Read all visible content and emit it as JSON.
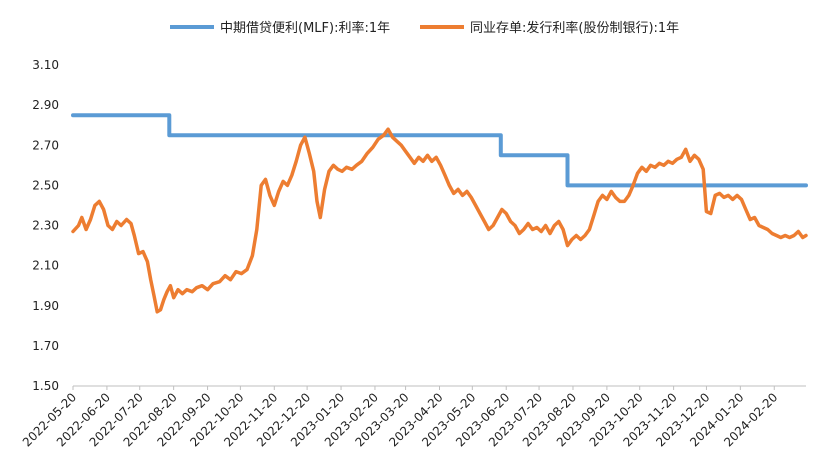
{
  "chart_data": {
    "type": "line",
    "title": "",
    "xlabel": "",
    "ylabel": "",
    "ylim": [
      1.5,
      3.1
    ],
    "yticks": [
      3.1,
      2.9,
      2.7,
      2.5,
      2.3,
      2.1,
      1.9,
      1.7,
      1.5
    ],
    "ytick_labels": [
      "3.10",
      "2.90",
      "2.70",
      "2.50",
      "2.30",
      "2.10",
      "1.90",
      "1.70",
      "1.50"
    ],
    "x_start": "2022-05-20",
    "x_end": "2024-03-20",
    "xtick_labels": [
      "2022-05-20",
      "2022-06-20",
      "2022-07-20",
      "2022-08-20",
      "2022-09-20",
      "2022-10-20",
      "2022-11-20",
      "2022-12-20",
      "2023-01-20",
      "2023-02-20",
      "2023-03-20",
      "2023-04-20",
      "2023-05-20",
      "2023-06-20",
      "2023-07-20",
      "2023-08-20",
      "2023-09-20",
      "2023-10-20",
      "2023-11-20",
      "2023-12-20",
      "2024-01-20",
      "2024-02-20"
    ],
    "grid": false,
    "legend_position": "top",
    "series": [
      {
        "name": "中期借贷便利(MLF):利率:1年",
        "color": "#5B9BD5",
        "step": true,
        "points": [
          [
            "2022-05-20",
            2.85
          ],
          [
            "2022-08-16",
            2.75
          ],
          [
            "2023-06-15",
            2.65
          ],
          [
            "2023-08-15",
            2.5
          ],
          [
            "2024-03-20",
            2.5
          ]
        ]
      },
      {
        "name": "同业存单:发行利率(股份制银行):1年",
        "color": "#ED7D31",
        "step": false,
        "points": [
          [
            "2022-05-20",
            2.27
          ],
          [
            "2022-05-25",
            2.3
          ],
          [
            "2022-05-28",
            2.34
          ],
          [
            "2022-06-01",
            2.28
          ],
          [
            "2022-06-05",
            2.33
          ],
          [
            "2022-06-09",
            2.4
          ],
          [
            "2022-06-13",
            2.42
          ],
          [
            "2022-06-17",
            2.38
          ],
          [
            "2022-06-21",
            2.3
          ],
          [
            "2022-06-25",
            2.28
          ],
          [
            "2022-06-29",
            2.32
          ],
          [
            "2022-07-03",
            2.3
          ],
          [
            "2022-07-08",
            2.33
          ],
          [
            "2022-07-12",
            2.31
          ],
          [
            "2022-07-15",
            2.25
          ],
          [
            "2022-07-19",
            2.16
          ],
          [
            "2022-07-23",
            2.17
          ],
          [
            "2022-07-27",
            2.12
          ],
          [
            "2022-07-30",
            2.03
          ],
          [
            "2022-08-02",
            1.95
          ],
          [
            "2022-08-05",
            1.87
          ],
          [
            "2022-08-08",
            1.88
          ],
          [
            "2022-08-11",
            1.93
          ],
          [
            "2022-08-14",
            1.97
          ],
          [
            "2022-08-17",
            2.0
          ],
          [
            "2022-08-20",
            1.94
          ],
          [
            "2022-08-24",
            1.98
          ],
          [
            "2022-08-28",
            1.96
          ],
          [
            "2022-09-01",
            1.98
          ],
          [
            "2022-09-06",
            1.97
          ],
          [
            "2022-09-10",
            1.99
          ],
          [
            "2022-09-15",
            2.0
          ],
          [
            "2022-09-20",
            1.98
          ],
          [
            "2022-09-25",
            2.01
          ],
          [
            "2022-10-01",
            2.02
          ],
          [
            "2022-10-06",
            2.05
          ],
          [
            "2022-10-11",
            2.03
          ],
          [
            "2022-10-16",
            2.07
          ],
          [
            "2022-10-21",
            2.06
          ],
          [
            "2022-10-26",
            2.08
          ],
          [
            "2022-10-31",
            2.15
          ],
          [
            "2022-11-04",
            2.28
          ],
          [
            "2022-11-08",
            2.5
          ],
          [
            "2022-11-12",
            2.53
          ],
          [
            "2022-11-16",
            2.45
          ],
          [
            "2022-11-20",
            2.4
          ],
          [
            "2022-11-24",
            2.47
          ],
          [
            "2022-11-28",
            2.52
          ],
          [
            "2022-12-02",
            2.5
          ],
          [
            "2022-12-06",
            2.55
          ],
          [
            "2022-12-10",
            2.62
          ],
          [
            "2022-12-14",
            2.7
          ],
          [
            "2022-12-18",
            2.74
          ],
          [
            "2022-12-22",
            2.66
          ],
          [
            "2022-12-26",
            2.57
          ],
          [
            "2022-12-29",
            2.42
          ],
          [
            "2023-01-01",
            2.34
          ],
          [
            "2023-01-05",
            2.48
          ],
          [
            "2023-01-09",
            2.57
          ],
          [
            "2023-01-13",
            2.6
          ],
          [
            "2023-01-17",
            2.58
          ],
          [
            "2023-01-21",
            2.57
          ],
          [
            "2023-01-25",
            2.59
          ],
          [
            "2023-01-30",
            2.58
          ],
          [
            "2023-02-03",
            2.6
          ],
          [
            "2023-02-08",
            2.62
          ],
          [
            "2023-02-13",
            2.66
          ],
          [
            "2023-02-18",
            2.69
          ],
          [
            "2023-02-23",
            2.73
          ],
          [
            "2023-02-28",
            2.75
          ],
          [
            "2023-03-04",
            2.78
          ],
          [
            "2023-03-08",
            2.74
          ],
          [
            "2023-03-12",
            2.72
          ],
          [
            "2023-03-16",
            2.7
          ],
          [
            "2023-03-20",
            2.67
          ],
          [
            "2023-03-24",
            2.64
          ],
          [
            "2023-03-28",
            2.61
          ],
          [
            "2023-04-01",
            2.64
          ],
          [
            "2023-04-05",
            2.62
          ],
          [
            "2023-04-09",
            2.65
          ],
          [
            "2023-04-13",
            2.62
          ],
          [
            "2023-04-17",
            2.64
          ],
          [
            "2023-04-21",
            2.6
          ],
          [
            "2023-04-25",
            2.55
          ],
          [
            "2023-04-29",
            2.5
          ],
          [
            "2023-05-03",
            2.46
          ],
          [
            "2023-05-07",
            2.48
          ],
          [
            "2023-05-11",
            2.45
          ],
          [
            "2023-05-15",
            2.47
          ],
          [
            "2023-05-19",
            2.44
          ],
          [
            "2023-05-23",
            2.4
          ],
          [
            "2023-05-27",
            2.36
          ],
          [
            "2023-05-31",
            2.32
          ],
          [
            "2023-06-04",
            2.28
          ],
          [
            "2023-06-08",
            2.3
          ],
          [
            "2023-06-12",
            2.34
          ],
          [
            "2023-06-16",
            2.38
          ],
          [
            "2023-06-20",
            2.36
          ],
          [
            "2023-06-24",
            2.32
          ],
          [
            "2023-06-28",
            2.3
          ],
          [
            "2023-07-02",
            2.26
          ],
          [
            "2023-07-06",
            2.28
          ],
          [
            "2023-07-10",
            2.31
          ],
          [
            "2023-07-14",
            2.28
          ],
          [
            "2023-07-18",
            2.29
          ],
          [
            "2023-07-22",
            2.27
          ],
          [
            "2023-07-26",
            2.3
          ],
          [
            "2023-07-30",
            2.26
          ],
          [
            "2023-08-03",
            2.3
          ],
          [
            "2023-08-07",
            2.32
          ],
          [
            "2023-08-11",
            2.28
          ],
          [
            "2023-08-15",
            2.2
          ],
          [
            "2023-08-19",
            2.23
          ],
          [
            "2023-08-23",
            2.25
          ],
          [
            "2023-08-27",
            2.23
          ],
          [
            "2023-08-31",
            2.25
          ],
          [
            "2023-09-04",
            2.28
          ],
          [
            "2023-09-08",
            2.35
          ],
          [
            "2023-09-12",
            2.42
          ],
          [
            "2023-09-16",
            2.45
          ],
          [
            "2023-09-20",
            2.43
          ],
          [
            "2023-09-24",
            2.47
          ],
          [
            "2023-09-28",
            2.44
          ],
          [
            "2023-10-02",
            2.42
          ],
          [
            "2023-10-06",
            2.42
          ],
          [
            "2023-10-10",
            2.45
          ],
          [
            "2023-10-14",
            2.5
          ],
          [
            "2023-10-18",
            2.56
          ],
          [
            "2023-10-22",
            2.59
          ],
          [
            "2023-10-26",
            2.57
          ],
          [
            "2023-10-30",
            2.6
          ],
          [
            "2023-11-03",
            2.59
          ],
          [
            "2023-11-07",
            2.61
          ],
          [
            "2023-11-11",
            2.6
          ],
          [
            "2023-11-15",
            2.62
          ],
          [
            "2023-11-19",
            2.61
          ],
          [
            "2023-11-23",
            2.63
          ],
          [
            "2023-11-27",
            2.64
          ],
          [
            "2023-12-01",
            2.68
          ],
          [
            "2023-12-05",
            2.62
          ],
          [
            "2023-12-09",
            2.65
          ],
          [
            "2023-12-13",
            2.63
          ],
          [
            "2023-12-17",
            2.58
          ],
          [
            "2023-12-20",
            2.37
          ],
          [
            "2023-12-24",
            2.36
          ],
          [
            "2023-12-28",
            2.45
          ],
          [
            "2024-01-01",
            2.46
          ],
          [
            "2024-01-05",
            2.44
          ],
          [
            "2024-01-09",
            2.45
          ],
          [
            "2024-01-13",
            2.43
          ],
          [
            "2024-01-17",
            2.45
          ],
          [
            "2024-01-21",
            2.43
          ],
          [
            "2024-01-25",
            2.38
          ],
          [
            "2024-01-29",
            2.33
          ],
          [
            "2024-02-02",
            2.34
          ],
          [
            "2024-02-06",
            2.3
          ],
          [
            "2024-02-10",
            2.29
          ],
          [
            "2024-02-14",
            2.28
          ],
          [
            "2024-02-18",
            2.26
          ],
          [
            "2024-02-22",
            2.25
          ],
          [
            "2024-02-26",
            2.24
          ],
          [
            "2024-03-01",
            2.25
          ],
          [
            "2024-03-05",
            2.24
          ],
          [
            "2024-03-09",
            2.25
          ],
          [
            "2024-03-13",
            2.27
          ],
          [
            "2024-03-17",
            2.24
          ],
          [
            "2024-03-20",
            2.25
          ]
        ]
      }
    ]
  }
}
